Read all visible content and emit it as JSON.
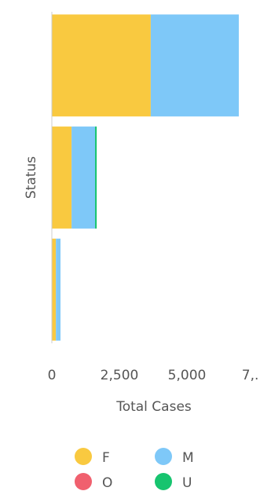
{
  "chart_data": {
    "type": "stacked-bar-horizontal",
    "categories": [
      null,
      null,
      null
    ],
    "series": [
      {
        "name": "F",
        "color": "#f9c940",
        "values": [
          3660,
          730,
          150
        ]
      },
      {
        "name": "M",
        "color": "#7ec8f8",
        "values": [
          3260,
          870,
          170
        ]
      },
      {
        "name": "O",
        "color": "#f0606e",
        "values": [
          0,
          0,
          0
        ]
      },
      {
        "name": "U",
        "color": "#17c46f",
        "values": [
          0,
          60,
          0
        ]
      }
    ],
    "xlim": [
      0,
      7500
    ],
    "xticks": [
      0,
      {
        "value": 2500,
        "label": "2,500"
      },
      {
        "value": 5000,
        "label": "5,000"
      },
      {
        "value": 7500,
        "label": "7,..."
      }
    ],
    "x_label": "Total Cases",
    "y_label": "Status"
  }
}
